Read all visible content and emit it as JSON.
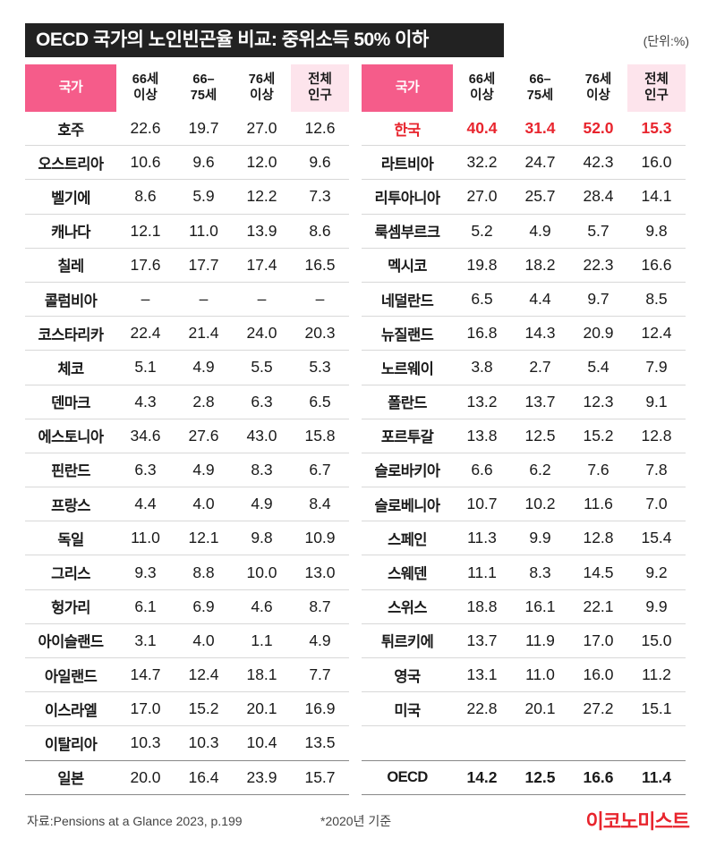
{
  "title": "OECD 국가의 노인빈곤율 비교: 중위소득 50% 이하",
  "unit": "(단위:%)",
  "source": "자료:Pensions at a Glance 2023, p.199",
  "base_year_note": "*2020년 기준",
  "brand": "이코노미스트",
  "colors": {
    "accent_pink": "#f55c8a",
    "light_pink": "#fde4ec",
    "highlight_red": "#e8242d",
    "title_bg": "#222222"
  },
  "chart_data": {
    "type": "table",
    "headers": [
      "국가",
      "66세\n이상",
      "66–\n75세",
      "76세\n이상",
      "전체\n인구"
    ],
    "left_rows": [
      [
        "호주",
        "22.6",
        "19.7",
        "27.0",
        "12.6"
      ],
      [
        "오스트리아",
        "10.6",
        "9.6",
        "12.0",
        "9.6"
      ],
      [
        "벨기에",
        "8.6",
        "5.9",
        "12.2",
        "7.3"
      ],
      [
        "캐나다",
        "12.1",
        "11.0",
        "13.9",
        "8.6"
      ],
      [
        "칠레",
        "17.6",
        "17.7",
        "17.4",
        "16.5"
      ],
      [
        "콜럼비아",
        "–",
        "–",
        "–",
        "–"
      ],
      [
        "코스타리카",
        "22.4",
        "21.4",
        "24.0",
        "20.3"
      ],
      [
        "체코",
        "5.1",
        "4.9",
        "5.5",
        "5.3"
      ],
      [
        "덴마크",
        "4.3",
        "2.8",
        "6.3",
        "6.5"
      ],
      [
        "에스토니아",
        "34.6",
        "27.6",
        "43.0",
        "15.8"
      ],
      [
        "핀란드",
        "6.3",
        "4.9",
        "8.3",
        "6.7"
      ],
      [
        "프랑스",
        "4.4",
        "4.0",
        "4.9",
        "8.4"
      ],
      [
        "독일",
        "11.0",
        "12.1",
        "9.8",
        "10.9"
      ],
      [
        "그리스",
        "9.3",
        "8.8",
        "10.0",
        "13.0"
      ],
      [
        "헝가리",
        "6.1",
        "6.9",
        "4.6",
        "8.7"
      ],
      [
        "아이슬랜드",
        "3.1",
        "4.0",
        "1.1",
        "4.9"
      ],
      [
        "아일랜드",
        "14.7",
        "12.4",
        "18.1",
        "7.7"
      ],
      [
        "이스라엘",
        "17.0",
        "15.2",
        "20.1",
        "16.9"
      ],
      [
        "이탈리아",
        "10.3",
        "10.3",
        "10.4",
        "13.5"
      ],
      [
        "일본",
        "20.0",
        "16.4",
        "23.9",
        "15.7"
      ]
    ],
    "right_rows": [
      [
        "한국",
        "40.4",
        "31.4",
        "52.0",
        "15.3"
      ],
      [
        "라트비아",
        "32.2",
        "24.7",
        "42.3",
        "16.0"
      ],
      [
        "리투아니아",
        "27.0",
        "25.7",
        "28.4",
        "14.1"
      ],
      [
        "룩셈부르크",
        "5.2",
        "4.9",
        "5.7",
        "9.8"
      ],
      [
        "멕시코",
        "19.8",
        "18.2",
        "22.3",
        "16.6"
      ],
      [
        "네덜란드",
        "6.5",
        "4.4",
        "9.7",
        "8.5"
      ],
      [
        "뉴질랜드",
        "16.8",
        "14.3",
        "20.9",
        "12.4"
      ],
      [
        "노르웨이",
        "3.8",
        "2.7",
        "5.4",
        "7.9"
      ],
      [
        "폴란드",
        "13.2",
        "13.7",
        "12.3",
        "9.1"
      ],
      [
        "포르투갈",
        "13.8",
        "12.5",
        "15.2",
        "12.8"
      ],
      [
        "슬로바키아",
        "6.6",
        "6.2",
        "7.6",
        "7.8"
      ],
      [
        "슬로베니아",
        "10.7",
        "10.2",
        "11.6",
        "7.0"
      ],
      [
        "스페인",
        "11.3",
        "9.9",
        "12.8",
        "15.4"
      ],
      [
        "스웨덴",
        "11.1",
        "8.3",
        "14.5",
        "9.2"
      ],
      [
        "스위스",
        "18.8",
        "16.1",
        "22.1",
        "9.9"
      ],
      [
        "튀르키에",
        "13.7",
        "11.9",
        "17.0",
        "15.0"
      ],
      [
        "영국",
        "13.1",
        "11.0",
        "16.0",
        "11.2"
      ],
      [
        "미국",
        "22.8",
        "20.1",
        "27.2",
        "15.1"
      ],
      [
        "",
        "",
        "",
        "",
        ""
      ],
      [
        "OECD",
        "14.2",
        "12.5",
        "16.6",
        "11.4"
      ]
    ],
    "highlight_country": "한국",
    "summary_row": "OECD"
  }
}
